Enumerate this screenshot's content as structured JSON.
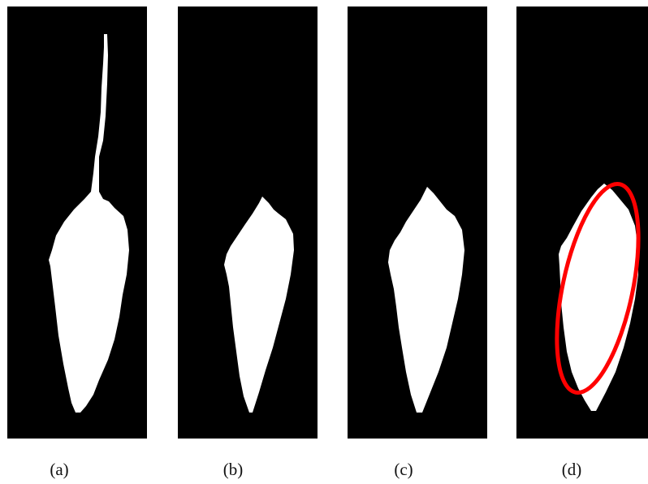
{
  "captions": {
    "a": "(a)",
    "b": "(b)",
    "c": "(c)",
    "d": "(d)"
  },
  "colors": {
    "background": "#000000",
    "foreground": "#ffffff",
    "contour": "#ff0000"
  }
}
